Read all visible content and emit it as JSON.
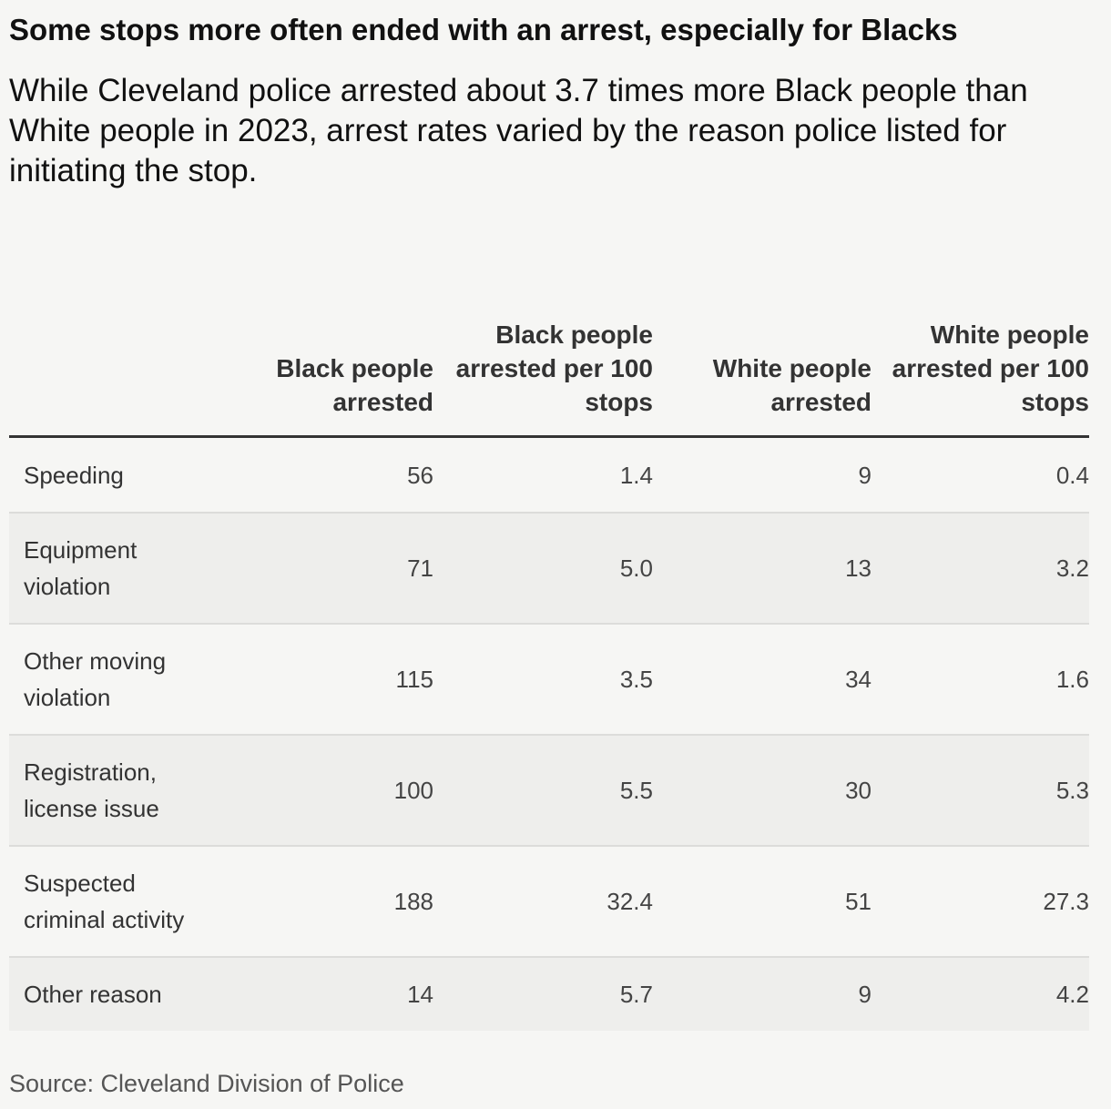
{
  "title": "Some stops more often ended with an arrest, especially for Blacks",
  "subtitle": "While Cleveland police arrested about 3.7 times more Black people than White people in 2023, arrest rates varied by the reason police listed for initiating the stop.",
  "source": "Source: Cleveland Division of Police",
  "chart_data": {
    "type": "table",
    "title": "Some stops more often ended with an arrest, especially for Blacks",
    "columns": [
      "",
      "Black people arrested",
      "Black people arrested per 100 stops",
      "White people arrested",
      "White people arrested per 100 stops"
    ],
    "rows": [
      {
        "label": "Speeding",
        "values": [
          "56",
          "1.4",
          "9",
          "0.4"
        ]
      },
      {
        "label": "Equipment violation",
        "values": [
          "71",
          "5.0",
          "13",
          "3.2"
        ]
      },
      {
        "label": "Other moving violation",
        "values": [
          "115",
          "3.5",
          "34",
          "1.6"
        ]
      },
      {
        "label": "Registration, license issue",
        "values": [
          "100",
          "5.5",
          "30",
          "5.3"
        ]
      },
      {
        "label": "Suspected criminal activity",
        "values": [
          "188",
          "32.4",
          "51",
          "27.3"
        ]
      },
      {
        "label": "Other reason",
        "values": [
          "14",
          "5.7",
          "9",
          "4.2"
        ]
      }
    ]
  }
}
